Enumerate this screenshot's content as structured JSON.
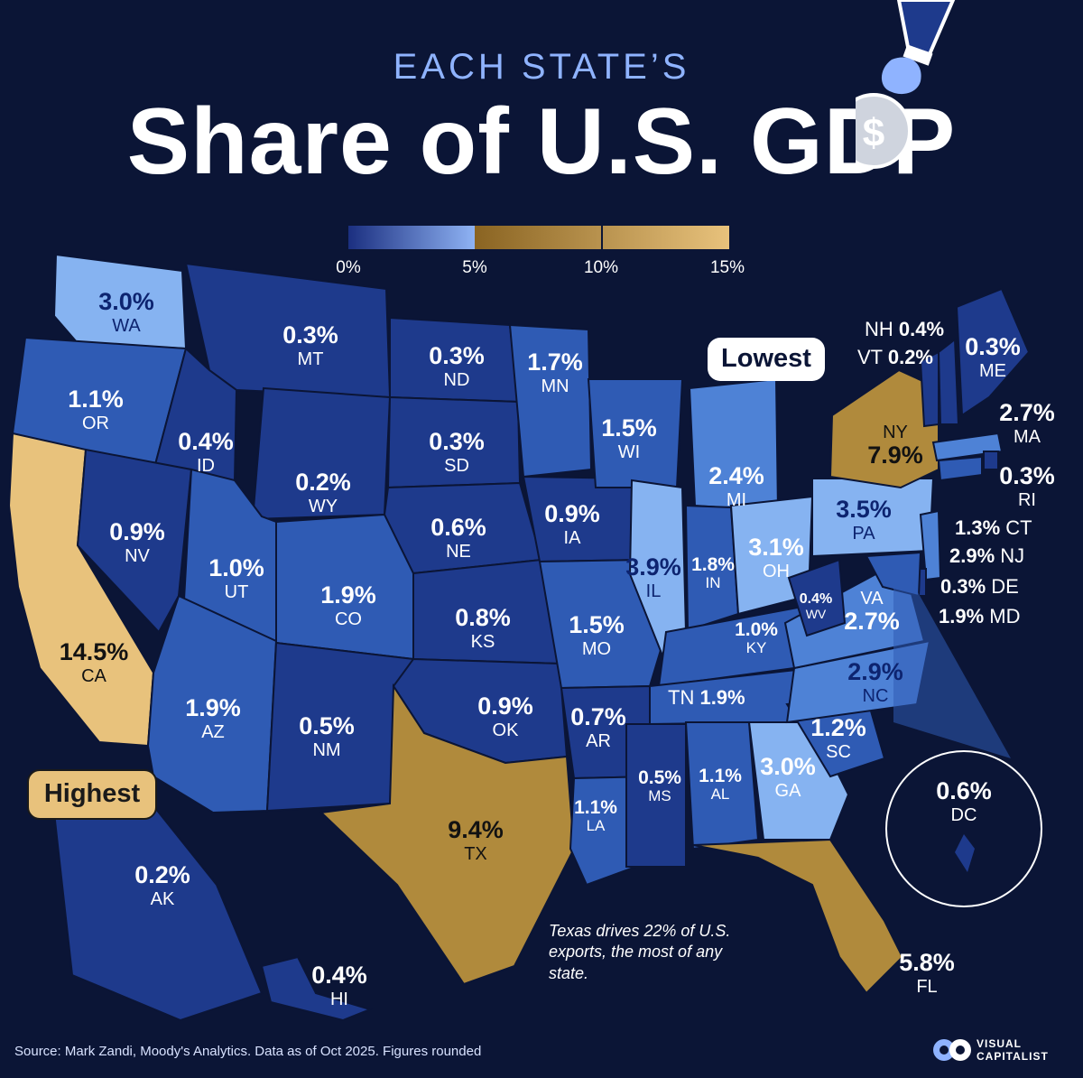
{
  "header": {
    "kicker": "EACH STATE’S",
    "title": "Share of U.S. GDP"
  },
  "legend": {
    "ticks": [
      "0%",
      "5%",
      "10%",
      "15%"
    ]
  },
  "colors": {
    "background": "#0b1536",
    "bin_0_1": "#1e3a8c",
    "bin_1_2": "#2f5bb4",
    "bin_2_3": "#4e82d6",
    "bin_3_5": "#86b3f1",
    "bin_5_10": "#b08a3c",
    "bin_10_15": "#e8c27c"
  },
  "callouts": {
    "lowest": "Lowest",
    "highest": "Highest"
  },
  "states": [
    {
      "abbr": "WA",
      "value": "3.0%"
    },
    {
      "abbr": "OR",
      "value": "1.1%"
    },
    {
      "abbr": "CA",
      "value": "14.5%"
    },
    {
      "abbr": "MT",
      "value": "0.3%"
    },
    {
      "abbr": "ID",
      "value": "0.4%"
    },
    {
      "abbr": "NV",
      "value": "0.9%"
    },
    {
      "abbr": "WY",
      "value": "0.2%"
    },
    {
      "abbr": "UT",
      "value": "1.0%"
    },
    {
      "abbr": "AZ",
      "value": "1.9%"
    },
    {
      "abbr": "CO",
      "value": "1.9%"
    },
    {
      "abbr": "NM",
      "value": "0.5%"
    },
    {
      "abbr": "ND",
      "value": "0.3%"
    },
    {
      "abbr": "SD",
      "value": "0.3%"
    },
    {
      "abbr": "NE",
      "value": "0.6%"
    },
    {
      "abbr": "KS",
      "value": "0.8%"
    },
    {
      "abbr": "OK",
      "value": "0.9%"
    },
    {
      "abbr": "TX",
      "value": "9.4%"
    },
    {
      "abbr": "MN",
      "value": "1.7%"
    },
    {
      "abbr": "IA",
      "value": "0.9%"
    },
    {
      "abbr": "MO",
      "value": "1.5%"
    },
    {
      "abbr": "AR",
      "value": "0.7%"
    },
    {
      "abbr": "LA",
      "value": "1.1%"
    },
    {
      "abbr": "WI",
      "value": "1.5%"
    },
    {
      "abbr": "IL",
      "value": "3.9%"
    },
    {
      "abbr": "MI",
      "value": "2.4%"
    },
    {
      "abbr": "IN",
      "value": "1.8%"
    },
    {
      "abbr": "OH",
      "value": "3.1%"
    },
    {
      "abbr": "KY",
      "value": "1.0%"
    },
    {
      "abbr": "TN",
      "value": "1.9%"
    },
    {
      "abbr": "MS",
      "value": "0.5%"
    },
    {
      "abbr": "AL",
      "value": "1.1%"
    },
    {
      "abbr": "GA",
      "value": "3.0%"
    },
    {
      "abbr": "FL",
      "value": "5.8%"
    },
    {
      "abbr": "SC",
      "value": "1.2%"
    },
    {
      "abbr": "NC",
      "value": "2.9%"
    },
    {
      "abbr": "VA",
      "value": "2.7%"
    },
    {
      "abbr": "WV",
      "value": "0.4%"
    },
    {
      "abbr": "PA",
      "value": "3.5%"
    },
    {
      "abbr": "NY",
      "value": "7.9%"
    },
    {
      "abbr": "NH",
      "value": "0.4%"
    },
    {
      "abbr": "VT",
      "value": "0.2%"
    },
    {
      "abbr": "ME",
      "value": "0.3%"
    },
    {
      "abbr": "MA",
      "value": "2.7%"
    },
    {
      "abbr": "RI",
      "value": "0.3%"
    },
    {
      "abbr": "CT",
      "value": "1.3%"
    },
    {
      "abbr": "NJ",
      "value": "2.9%"
    },
    {
      "abbr": "DE",
      "value": "0.3%"
    },
    {
      "abbr": "MD",
      "value": "1.9%"
    },
    {
      "abbr": "DC",
      "value": "0.6%"
    },
    {
      "abbr": "AK",
      "value": "0.2%"
    },
    {
      "abbr": "HI",
      "value": "0.4%"
    }
  ],
  "annotation": "Texas drives 22% of U.S. exports, the most of any state.",
  "source": "Source: Mark Zandi, Moody's Analytics. Data as of Oct 2025. Figures rounded",
  "brand": {
    "line1": "VISUAL",
    "line2": "CAPITALIST"
  }
}
